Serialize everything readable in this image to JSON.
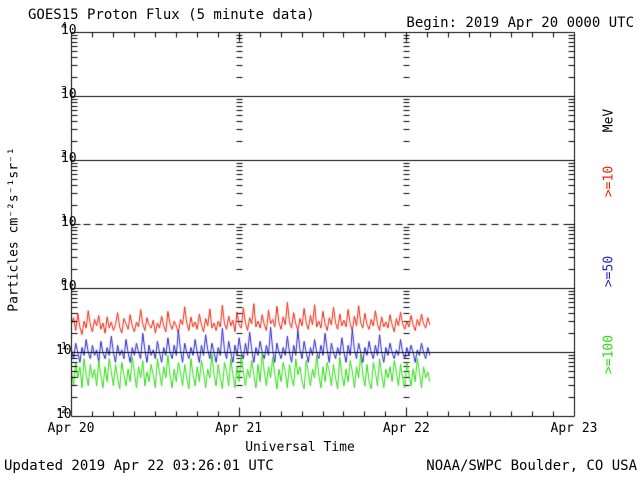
{
  "header": {
    "title": "GOES15 Proton Flux (5 minute data)",
    "begin_label": "Begin: 2019 Apr 20 0000 UTC"
  },
  "footer": {
    "updated": "Updated 2019 Apr 22 03:26:01 UTC",
    "source": "NOAA/SWPC Boulder, CO USA"
  },
  "chart_data": {
    "type": "line",
    "title": "GOES15 Proton Flux (5 minute data)",
    "begin": "2019 Apr 20 0000 UTC",
    "xlabel": "Universal Time",
    "ylabel": "Particles cm⁻²s⁻¹sr⁻¹",
    "right_axis_label": "MeV",
    "y_scale": "log",
    "ylim": [
      0.01,
      10000
    ],
    "y_ticks": [
      {
        "base": "10",
        "exp": "4"
      },
      {
        "base": "10",
        "exp": "3"
      },
      {
        "base": "10",
        "exp": "2"
      },
      {
        "base": "10",
        "exp": "1"
      },
      {
        "base": "10",
        "exp": "0"
      },
      {
        "base": "10",
        "exp": "-1"
      },
      {
        "base": "10",
        "exp": "-2"
      }
    ],
    "x_ticks": [
      {
        "label": "Apr 20",
        "hour": 0
      },
      {
        "label": "Apr 21",
        "hour": 24
      },
      {
        "label": "Apr 22",
        "hour": 48
      },
      {
        "label": "Apr 23",
        "hour": 72
      }
    ],
    "x_range_hours": [
      0,
      72
    ],
    "x_minor_tick_hours": 3,
    "grid": {
      "solid_decades": [
        3,
        2,
        0,
        -1
      ],
      "dashed_decades": [
        1
      ],
      "day_line_hours": [
        24,
        48
      ]
    },
    "step_hours": 0.3,
    "series": [
      {
        "name": ">=10 MeV",
        "label": ">=10",
        "color": "#ed2207",
        "points": [
          0.28,
          0.35,
          0.22,
          0.41,
          0.25,
          0.19,
          0.31,
          0.24,
          0.45,
          0.27,
          0.21,
          0.33,
          0.26,
          0.38,
          0.23,
          0.29,
          0.2,
          0.36,
          0.24,
          0.3,
          0.22,
          0.27,
          0.42,
          0.25,
          0.2,
          0.34,
          0.28,
          0.23,
          0.39,
          0.26,
          0.21,
          0.3,
          0.25,
          0.47,
          0.28,
          0.22,
          0.35,
          0.27,
          0.24,
          0.32,
          0.2,
          0.29,
          0.24,
          0.37,
          0.26,
          0.21,
          0.44,
          0.28,
          0.23,
          0.31,
          0.26,
          0.2,
          0.33,
          0.27,
          0.52,
          0.29,
          0.22,
          0.36,
          0.25,
          0.3,
          0.23,
          0.4,
          0.27,
          0.21,
          0.34,
          0.26,
          0.48,
          0.24,
          0.29,
          0.22,
          0.31,
          0.25,
          0.55,
          0.28,
          0.23,
          0.37,
          0.26,
          0.32,
          0.21,
          0.43,
          0.27,
          0.24,
          0.5,
          0.29,
          0.22,
          0.35,
          0.28,
          0.58,
          0.25,
          0.31,
          0.24,
          0.39,
          0.27,
          0.22,
          0.46,
          0.28,
          0.33,
          0.25,
          0.53,
          0.29,
          0.23,
          0.36,
          0.27,
          0.61,
          0.3,
          0.24,
          0.42,
          0.28,
          0.22,
          0.34,
          0.26,
          0.49,
          0.29,
          0.23,
          0.38,
          0.27,
          0.56,
          0.25,
          0.31,
          0.24,
          0.44,
          0.28,
          0.22,
          0.35,
          0.27,
          0.51,
          0.29,
          0.23,
          0.4,
          0.26,
          0.32,
          0.25,
          0.47,
          0.28,
          0.22,
          0.37,
          0.26,
          0.54,
          0.29,
          0.24,
          0.41,
          0.27,
          0.23,
          0.33,
          0.26,
          0.45,
          0.28,
          0.22,
          0.36,
          0.25,
          0.3,
          0.24,
          0.39,
          0.27,
          0.21,
          0.34,
          0.26,
          0.43,
          0.28,
          0.23,
          0.31,
          0.25,
          0.38,
          0.27,
          0.22,
          0.33,
          0.26,
          0.4,
          0.28,
          0.24,
          0.35,
          0.27
        ]
      },
      {
        "name": ">=50 MeV",
        "label": ">=50",
        "color": "#2222cc",
        "points": [
          0.11,
          0.08,
          0.14,
          0.1,
          0.07,
          0.12,
          0.09,
          0.16,
          0.1,
          0.08,
          0.13,
          0.09,
          0.11,
          0.07,
          0.15,
          0.1,
          0.08,
          0.12,
          0.09,
          0.18,
          0.1,
          0.07,
          0.13,
          0.09,
          0.11,
          0.08,
          0.16,
          0.1,
          0.07,
          0.12,
          0.09,
          0.14,
          0.1,
          0.08,
          0.2,
          0.11,
          0.07,
          0.13,
          0.09,
          0.11,
          0.08,
          0.15,
          0.1,
          0.07,
          0.12,
          0.09,
          0.17,
          0.1,
          0.08,
          0.13,
          0.09,
          0.22,
          0.11,
          0.07,
          0.14,
          0.1,
          0.08,
          0.12,
          0.09,
          0.16,
          0.1,
          0.07,
          0.13,
          0.09,
          0.19,
          0.11,
          0.08,
          0.14,
          0.1,
          0.07,
          0.12,
          0.09,
          0.24,
          0.11,
          0.08,
          0.15,
          0.1,
          0.07,
          0.13,
          0.09,
          0.17,
          0.1,
          0.08,
          0.14,
          0.09,
          0.21,
          0.11,
          0.07,
          0.12,
          0.09,
          0.15,
          0.1,
          0.08,
          0.13,
          0.09,
          0.25,
          0.11,
          0.07,
          0.14,
          0.1,
          0.08,
          0.12,
          0.09,
          0.18,
          0.1,
          0.07,
          0.13,
          0.09,
          0.22,
          0.11,
          0.08,
          0.15,
          0.1,
          0.07,
          0.12,
          0.09,
          0.16,
          0.1,
          0.08,
          0.13,
          0.09,
          0.2,
          0.11,
          0.07,
          0.14,
          0.1,
          0.08,
          0.12,
          0.09,
          0.17,
          0.1,
          0.07,
          0.13,
          0.09,
          0.23,
          0.11,
          0.08,
          0.14,
          0.1,
          0.07,
          0.12,
          0.09,
          0.15,
          0.1,
          0.08,
          0.13,
          0.09,
          0.19,
          0.1,
          0.07,
          0.12,
          0.09,
          0.14,
          0.1,
          0.08,
          0.11,
          0.09,
          0.16,
          0.1,
          0.08,
          0.12,
          0.09,
          0.13,
          0.1,
          0.07,
          0.11,
          0.09,
          0.14,
          0.1,
          0.08,
          0.12,
          0.09
        ]
      },
      {
        "name": ">=100 MeV",
        "label": ">=100",
        "color": "#2cdb12",
        "points": [
          0.05,
          0.03,
          0.07,
          0.04,
          0.06,
          0.028,
          0.08,
          0.045,
          0.03,
          0.065,
          0.04,
          0.055,
          0.03,
          0.075,
          0.045,
          0.028,
          0.06,
          0.035,
          0.08,
          0.05,
          0.03,
          0.065,
          0.04,
          0.027,
          0.07,
          0.045,
          0.03,
          0.055,
          0.035,
          0.085,
          0.05,
          0.028,
          0.06,
          0.04,
          0.075,
          0.03,
          0.05,
          0.035,
          0.065,
          0.045,
          0.028,
          0.08,
          0.05,
          0.03,
          0.06,
          0.04,
          0.09,
          0.045,
          0.028,
          0.055,
          0.035,
          0.07,
          0.05,
          0.03,
          0.065,
          0.04,
          0.027,
          0.08,
          0.045,
          0.03,
          0.06,
          0.035,
          0.075,
          0.05,
          0.028,
          0.055,
          0.04,
          0.095,
          0.045,
          0.03,
          0.065,
          0.04,
          0.027,
          0.07,
          0.05,
          0.03,
          0.08,
          0.045,
          0.028,
          0.06,
          0.035,
          0.09,
          0.05,
          0.03,
          0.055,
          0.04,
          0.075,
          0.045,
          0.028,
          0.065,
          0.035,
          0.1,
          0.05,
          0.03,
          0.06,
          0.04,
          0.085,
          0.045,
          0.027,
          0.055,
          0.035,
          0.07,
          0.05,
          0.028,
          0.065,
          0.04,
          0.03,
          0.08,
          0.045,
          0.06,
          0.035,
          0.027,
          0.075,
          0.05,
          0.03,
          0.055,
          0.04,
          0.09,
          0.045,
          0.028,
          0.06,
          0.035,
          0.07,
          0.05,
          0.03,
          0.065,
          0.04,
          0.027,
          0.085,
          0.045,
          0.03,
          0.055,
          0.035,
          0.075,
          0.05,
          0.028,
          0.06,
          0.04,
          0.095,
          0.045,
          0.03,
          0.065,
          0.035,
          0.027,
          0.07,
          0.05,
          0.03,
          0.08,
          0.045,
          0.028,
          0.055,
          0.04,
          0.06,
          0.035,
          0.075,
          0.05,
          0.03,
          0.065,
          0.04,
          0.028,
          0.07,
          0.045,
          0.03,
          0.055,
          0.035,
          0.08,
          0.05,
          0.028,
          0.06,
          0.04,
          0.05,
          0.035
        ]
      }
    ]
  }
}
